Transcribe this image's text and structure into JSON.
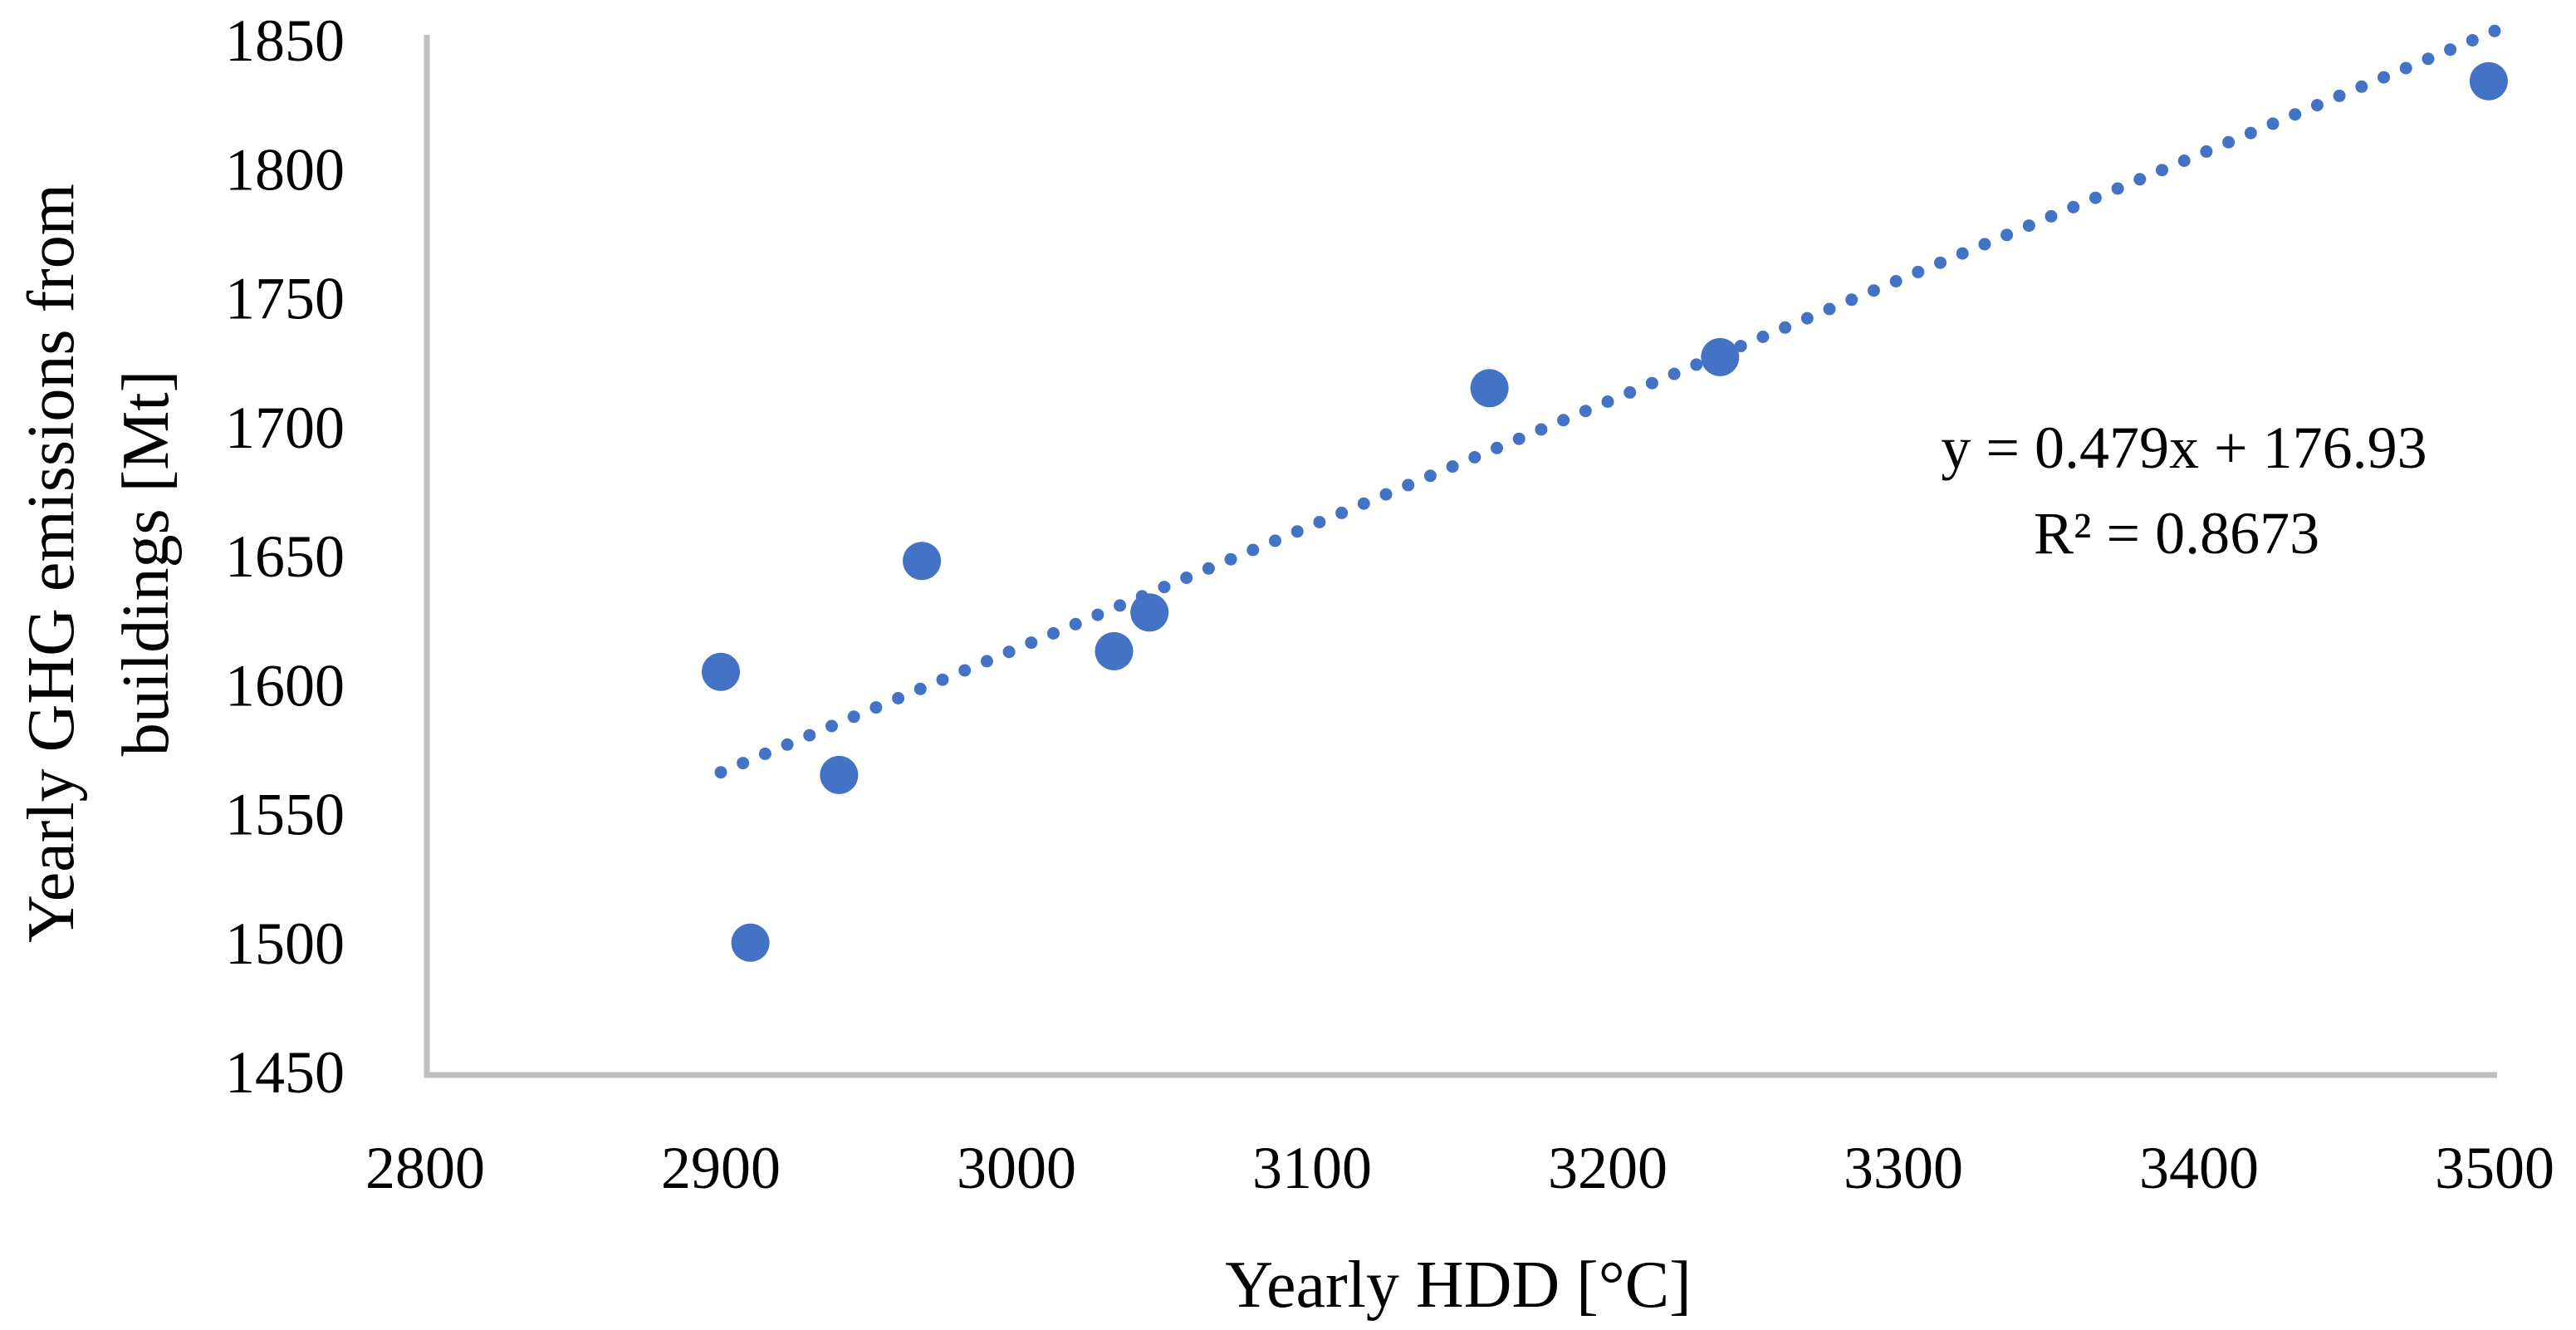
{
  "chart_data": {
    "type": "scatter",
    "title": "",
    "xlabel": "Yearly HDD [°C]",
    "ylabel_lines": [
      "Yearly GHG emissions from",
      "buildings [Mt]"
    ],
    "x_ticks": [
      2800,
      2900,
      3000,
      3100,
      3200,
      3300,
      3400,
      3500
    ],
    "y_ticks": [
      1450,
      1500,
      1550,
      1600,
      1650,
      1700,
      1750,
      1800,
      1850
    ],
    "xlim": [
      2800,
      3500
    ],
    "ylim": [
      1450,
      1850
    ],
    "grid": false,
    "legend": "none",
    "points": [
      {
        "x": 2900,
        "y": 1605
      },
      {
        "x": 2910,
        "y": 1500
      },
      {
        "x": 2940,
        "y": 1565
      },
      {
        "x": 2968,
        "y": 1648
      },
      {
        "x": 3033,
        "y": 1613
      },
      {
        "x": 3045,
        "y": 1628
      },
      {
        "x": 3160,
        "y": 1715
      },
      {
        "x": 3238,
        "y": 1727
      },
      {
        "x": 3498,
        "y": 1834
      }
    ],
    "trendline": {
      "slope": 0.479,
      "intercept": 176.93,
      "x_start": 2900,
      "x_end": 3500,
      "style": "dotted"
    },
    "annotation": {
      "equation": "y = 0.479x + 176.93",
      "r_squared": "R² = 0.8673"
    },
    "marker_color": "#4472C4",
    "trend_color": "#4472C4",
    "axis_color": "#BFBFBF",
    "text_color": "#000000"
  }
}
